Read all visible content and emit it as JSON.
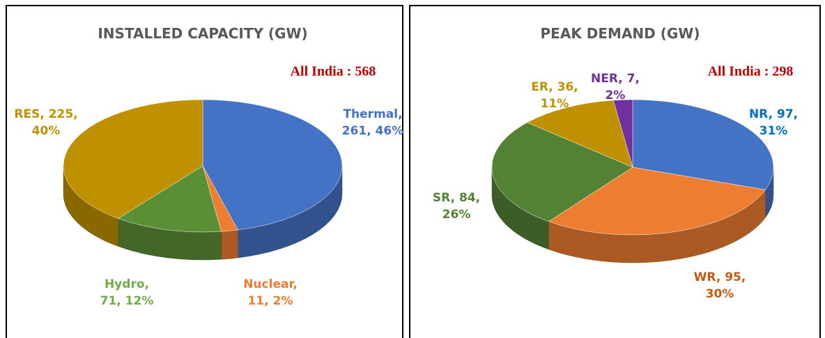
{
  "chart_data": [
    {
      "type": "pie",
      "title": "INSTALLED CAPACITY (GW)",
      "annotation": "All India : 568",
      "values": [
        261,
        11,
        71,
        225
      ],
      "value_labels": [
        "Thermal,\n261, 46%",
        "Nuclear,\n11, 2%",
        "Hydro,\n71, 12%",
        "RES, 225,\n40%"
      ],
      "colors": [
        "#4472c4",
        "#ed7d31",
        "#5b8f35",
        "#bf9000"
      ],
      "label_colors": [
        "#4472c4",
        "#ed7d31",
        "#70ad47",
        "#bf9000"
      ]
    },
    {
      "type": "pie",
      "title": "PEAK DEMAND (GW)",
      "annotation": "All India : 298",
      "values": [
        97,
        95,
        84,
        36,
        7
      ],
      "value_labels": [
        "NR, 97,\n31%",
        "WR, 95,\n30%",
        "SR, 84,\n26%",
        "ER, 36,\n11%",
        "NER, 7,\n2%"
      ],
      "colors": [
        "#4472c4",
        "#ed7d31",
        "#548235",
        "#bf9000",
        "#7030a0"
      ],
      "label_colors": [
        "#0070c0",
        "#c55a11",
        "#548235",
        "#bf9000",
        "#7030a0"
      ]
    }
  ]
}
